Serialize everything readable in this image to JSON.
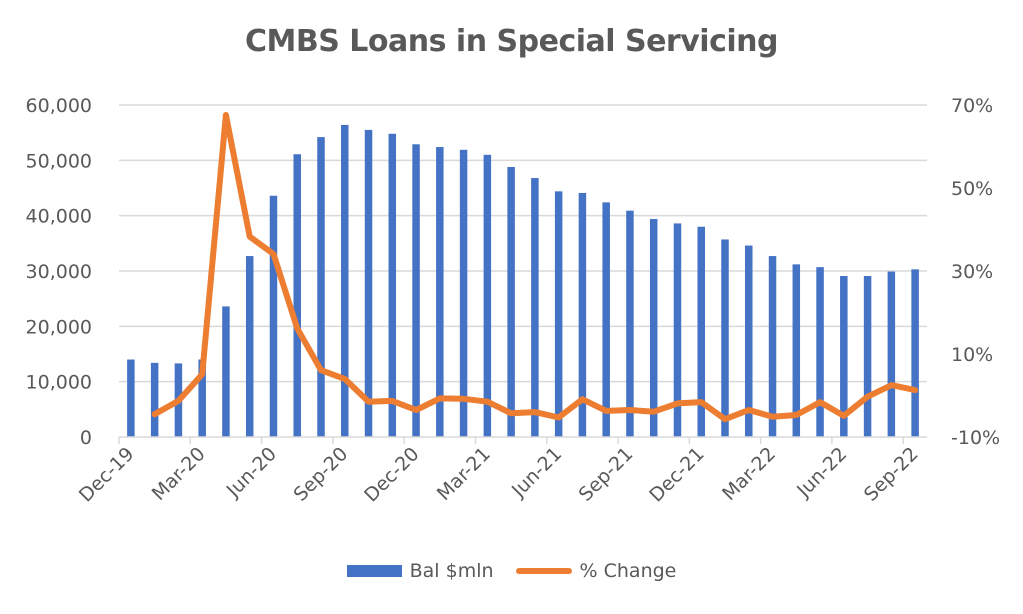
{
  "chart_data": {
    "type": "bar+line",
    "title": "CMBS Loans in Special Servicing",
    "xlabel": "",
    "ylabel": "",
    "y2label": "",
    "categories": [
      "Dec-19",
      "Jan-20",
      "Feb-20",
      "Mar-20",
      "Apr-20",
      "May-20",
      "Jun-20",
      "Jul-20",
      "Aug-20",
      "Sep-20",
      "Oct-20",
      "Nov-20",
      "Dec-20",
      "Jan-21",
      "Feb-21",
      "Mar-21",
      "Apr-21",
      "May-21",
      "Jun-21",
      "Jul-21",
      "Aug-21",
      "Sep-21",
      "Oct-21",
      "Nov-21",
      "Dec-21",
      "Jan-22",
      "Feb-22",
      "Mar-22",
      "Apr-22",
      "May-22",
      "Jun-22",
      "Jul-22",
      "Aug-22",
      "Sep-22"
    ],
    "x_tick_labels": [
      "Dec-19",
      "Mar-20",
      "Jun-20",
      "Sep-20",
      "Dec-20",
      "Mar-21",
      "Jun-21",
      "Sep-21",
      "Dec-21",
      "Mar-22",
      "Jun-22",
      "Sep-22"
    ],
    "series": [
      {
        "name": "Bal $mln",
        "type": "bar",
        "axis": "left",
        "color": "#4472C4",
        "values": [
          14000,
          13400,
          13300,
          14000,
          23600,
          32700,
          43600,
          51100,
          54200,
          56400,
          55500,
          54800,
          52900,
          52400,
          51900,
          51000,
          48800,
          46800,
          44400,
          44100,
          42400,
          40900,
          39400,
          38600,
          38000,
          35700,
          34600,
          32700,
          31200,
          30700,
          29100,
          29100,
          29900,
          30300
        ]
      },
      {
        "name": "% Change",
        "type": "line",
        "axis": "right",
        "color": "#ED7D31",
        "values": [
          null,
          -4.5,
          -1.3,
          5.1,
          67.6,
          38.3,
          34.1,
          16.2,
          6.1,
          4.0,
          -1.5,
          -1.3,
          -3.5,
          -0.7,
          -0.8,
          -1.5,
          -4.3,
          -4.0,
          -5.3,
          -0.9,
          -3.7,
          -3.5,
          -3.9,
          -1.9,
          -1.6,
          -5.7,
          -3.5,
          -5.1,
          -4.7,
          -1.6,
          -4.9,
          -0.3,
          2.5,
          1.3
        ]
      }
    ],
    "ylim": [
      0,
      60000
    ],
    "y_ticks": [
      0,
      10000,
      20000,
      30000,
      40000,
      50000,
      60000
    ],
    "y_tick_labels": [
      "0",
      "10,000",
      "20,000",
      "30,000",
      "40,000",
      "50,000",
      "60,000"
    ],
    "y2lim": [
      -10,
      70
    ],
    "y2_ticks": [
      -10,
      10,
      30,
      50,
      70
    ],
    "y2_tick_labels": [
      "-10%",
      "10%",
      "30%",
      "50%",
      "70%"
    ],
    "grid": true,
    "legend_position": "bottom"
  },
  "legend": {
    "bar_label": "Bal $mln",
    "line_label": "% Change"
  }
}
